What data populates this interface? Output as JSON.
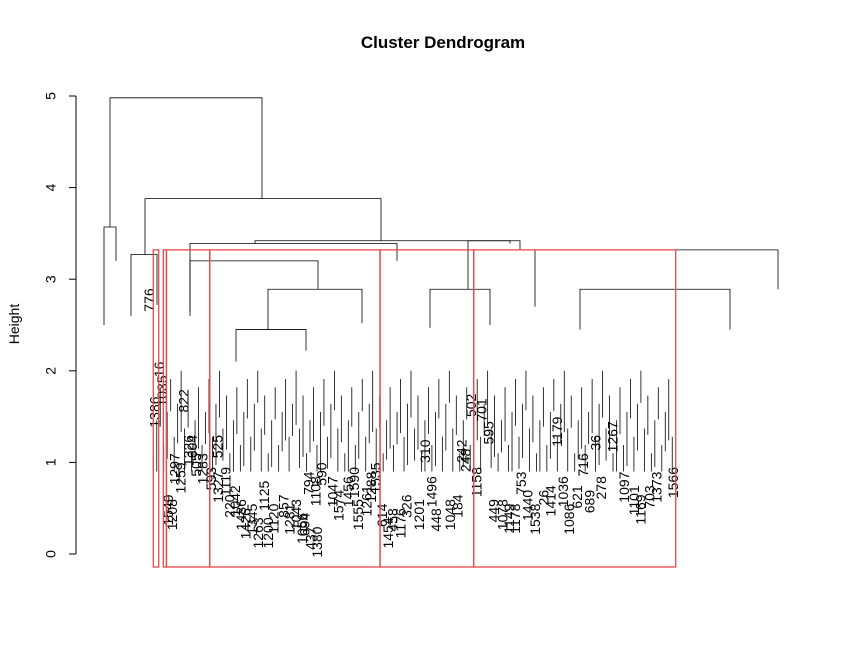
{
  "chart_data": {
    "type": "dendrogram",
    "title": "Cluster Dendrogram",
    "ylabel": "Height",
    "ylim": [
      0,
      5
    ],
    "yticks": [
      0,
      1,
      2,
      3,
      4,
      5
    ],
    "highlight_color": "#e8494b",
    "cut_height": 3.32,
    "merges": [
      {
        "x": 0.0,
        "h": 4.98
      },
      {
        "x": -0.55,
        "h": 3.57
      },
      {
        "x": 0.4,
        "h": 3.88
      },
      {
        "x": 0.2,
        "h": 3.27
      },
      {
        "x": 0.7,
        "h": 3.42
      },
      {
        "x": 0.5,
        "h": 3.39
      },
      {
        "x": 0.83,
        "h": 3.32
      },
      {
        "x": 0.28,
        "h": 2.89
      },
      {
        "x": 0.62,
        "h": 2.89
      }
    ],
    "clusters": [
      {
        "name": "",
        "x_range": [
          0.105,
          0.112
        ]
      },
      {
        "name": "",
        "x_range": [
          0.118,
          0.122
        ]
      },
      {
        "name": "",
        "x_range": [
          0.122,
          0.178
        ]
      },
      {
        "name": "",
        "x_range": [
          0.178,
          0.398
        ]
      },
      {
        "name": "",
        "x_range": [
          0.398,
          0.519
        ]
      },
      {
        "name": "",
        "x_range": [
          0.519,
          0.78
        ]
      }
    ],
    "leaf_labels": [
      {
        "label": "776",
        "x": 0.101,
        "h": 2.9
      },
      {
        "label": "1386",
        "x": 0.108,
        "h": 1.72
      },
      {
        "label": "16",
        "x": 0.114,
        "h": 2.1
      },
      {
        "label": "1035",
        "x": 0.118,
        "h": 1.95
      },
      {
        "label": "1549",
        "x": 0.126,
        "h": 0.65
      },
      {
        "label": "1208",
        "x": 0.131,
        "h": 0.6
      },
      {
        "label": "1297",
        "x": 0.134,
        "h": 1.1
      },
      {
        "label": "1259",
        "x": 0.142,
        "h": 1.0
      },
      {
        "label": "1326",
        "x": 0.152,
        "h": 1.3
      },
      {
        "label": "822",
        "x": 0.146,
        "h": 1.8
      },
      {
        "label": "505",
        "x": 0.162,
        "h": 1.1
      },
      {
        "label": "604",
        "x": 0.157,
        "h": 1.3
      },
      {
        "label": "1283",
        "x": 0.17,
        "h": 1.1
      },
      {
        "label": "525",
        "x": 0.19,
        "h": 1.3
      },
      {
        "label": "593",
        "x": 0.181,
        "h": 0.95
      },
      {
        "label": "1119",
        "x": 0.2,
        "h": 0.95
      },
      {
        "label": "1327",
        "x": 0.19,
        "h": 0.9
      },
      {
        "label": "220",
        "x": 0.205,
        "h": 0.65
      },
      {
        "label": "1042",
        "x": 0.212,
        "h": 0.75
      },
      {
        "label": "1486",
        "x": 0.22,
        "h": 0.6
      },
      {
        "label": "1426",
        "x": 0.226,
        "h": 0.5
      },
      {
        "label": "1345",
        "x": 0.234,
        "h": 0.55
      },
      {
        "label": "1263",
        "x": 0.242,
        "h": 0.4
      },
      {
        "label": "1125",
        "x": 0.25,
        "h": 0.8
      },
      {
        "label": "1120",
        "x": 0.262,
        "h": 0.55
      },
      {
        "label": "1200",
        "x": 0.255,
        "h": 0.4
      },
      {
        "label": "857",
        "x": 0.275,
        "h": 0.65
      },
      {
        "label": "1281",
        "x": 0.283,
        "h": 0.55
      },
      {
        "label": "1043",
        "x": 0.291,
        "h": 0.6
      },
      {
        "label": "1056",
        "x": 0.299,
        "h": 0.45
      },
      {
        "label": "794",
        "x": 0.307,
        "h": 0.9
      },
      {
        "label": "694",
        "x": 0.302,
        "h": 0.45
      },
      {
        "label": "1108",
        "x": 0.316,
        "h": 0.85
      },
      {
        "label": "590",
        "x": 0.324,
        "h": 1.0
      },
      {
        "label": "437",
        "x": 0.31,
        "h": 0.3
      },
      {
        "label": "1380",
        "x": 0.318,
        "h": 0.3
      },
      {
        "label": "1047",
        "x": 0.338,
        "h": 0.85
      },
      {
        "label": "1574",
        "x": 0.346,
        "h": 0.7
      },
      {
        "label": "1456",
        "x": 0.358,
        "h": 0.85
      },
      {
        "label": "1590",
        "x": 0.366,
        "h": 0.95
      },
      {
        "label": "1555",
        "x": 0.371,
        "h": 0.6
      },
      {
        "label": "1261",
        "x": 0.382,
        "h": 0.75
      },
      {
        "label": "1288",
        "x": 0.388,
        "h": 0.9
      },
      {
        "label": "1535",
        "x": 0.394,
        "h": 1.0
      },
      {
        "label": "614",
        "x": 0.402,
        "h": 0.55
      },
      {
        "label": "1454",
        "x": 0.41,
        "h": 0.4
      },
      {
        "label": "458",
        "x": 0.416,
        "h": 0.5
      },
      {
        "label": "1176",
        "x": 0.426,
        "h": 0.5
      },
      {
        "label": "326",
        "x": 0.434,
        "h": 0.65
      },
      {
        "label": "1201",
        "x": 0.45,
        "h": 0.6
      },
      {
        "label": "310",
        "x": 0.458,
        "h": 1.25
      },
      {
        "label": "1496",
        "x": 0.466,
        "h": 0.85
      },
      {
        "label": "448",
        "x": 0.472,
        "h": 0.5
      },
      {
        "label": "1048",
        "x": 0.49,
        "h": 0.6
      },
      {
        "label": "184",
        "x": 0.5,
        "h": 0.65
      },
      {
        "label": "242",
        "x": 0.505,
        "h": 1.25
      },
      {
        "label": "248",
        "x": 0.51,
        "h": 1.15
      },
      {
        "label": "502",
        "x": 0.517,
        "h": 1.75
      },
      {
        "label": "1158",
        "x": 0.524,
        "h": 0.95
      },
      {
        "label": "701",
        "x": 0.531,
        "h": 1.7
      },
      {
        "label": "595",
        "x": 0.54,
        "h": 1.45
      },
      {
        "label": "449",
        "x": 0.546,
        "h": 0.6
      },
      {
        "label": "1078",
        "x": 0.558,
        "h": 0.6
      },
      {
        "label": "1149",
        "x": 0.566,
        "h": 0.55
      },
      {
        "label": "1178",
        "x": 0.574,
        "h": 0.55
      },
      {
        "label": "753",
        "x": 0.582,
        "h": 0.9
      },
      {
        "label": "1440",
        "x": 0.59,
        "h": 0.7
      },
      {
        "label": "1538",
        "x": 0.6,
        "h": 0.55
      },
      {
        "label": "26",
        "x": 0.611,
        "h": 0.7
      },
      {
        "label": "1414",
        "x": 0.62,
        "h": 0.75
      },
      {
        "label": "1179",
        "x": 0.628,
        "h": 1.5
      },
      {
        "label": "1036",
        "x": 0.636,
        "h": 0.85
      },
      {
        "label": "1086",
        "x": 0.644,
        "h": 0.55
      },
      {
        "label": "716",
        "x": 0.662,
        "h": 1.1
      },
      {
        "label": "621",
        "x": 0.654,
        "h": 0.75
      },
      {
        "label": "689",
        "x": 0.67,
        "h": 0.7
      },
      {
        "label": "36",
        "x": 0.678,
        "h": 1.3
      },
      {
        "label": "1267",
        "x": 0.7,
        "h": 1.45
      },
      {
        "label": "278",
        "x": 0.685,
        "h": 0.85
      },
      {
        "label": "1097",
        "x": 0.715,
        "h": 0.9
      },
      {
        "label": "1101",
        "x": 0.728,
        "h": 0.75
      },
      {
        "label": "1169",
        "x": 0.736,
        "h": 0.65
      },
      {
        "label": "703",
        "x": 0.748,
        "h": 0.75
      },
      {
        "label": "1373",
        "x": 0.757,
        "h": 0.9
      },
      {
        "label": "1566",
        "x": 0.778,
        "h": 0.95
      }
    ]
  }
}
